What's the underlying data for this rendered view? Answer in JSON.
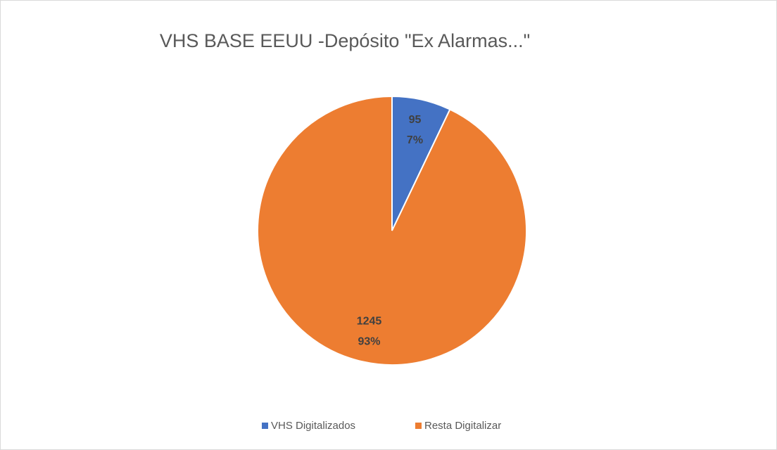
{
  "chart_data": {
    "type": "pie",
    "title": "VHS BASE EEUU -Depósito \"Ex Alarmas...\"",
    "categories": [
      "VHS Digitalizados",
      "Resta Digitalizar"
    ],
    "values": [
      95,
      1245
    ],
    "percent_labels": [
      "7%",
      "93%"
    ],
    "colors": [
      "#4472c4",
      "#ed7d31"
    ],
    "legend": "bottom"
  }
}
